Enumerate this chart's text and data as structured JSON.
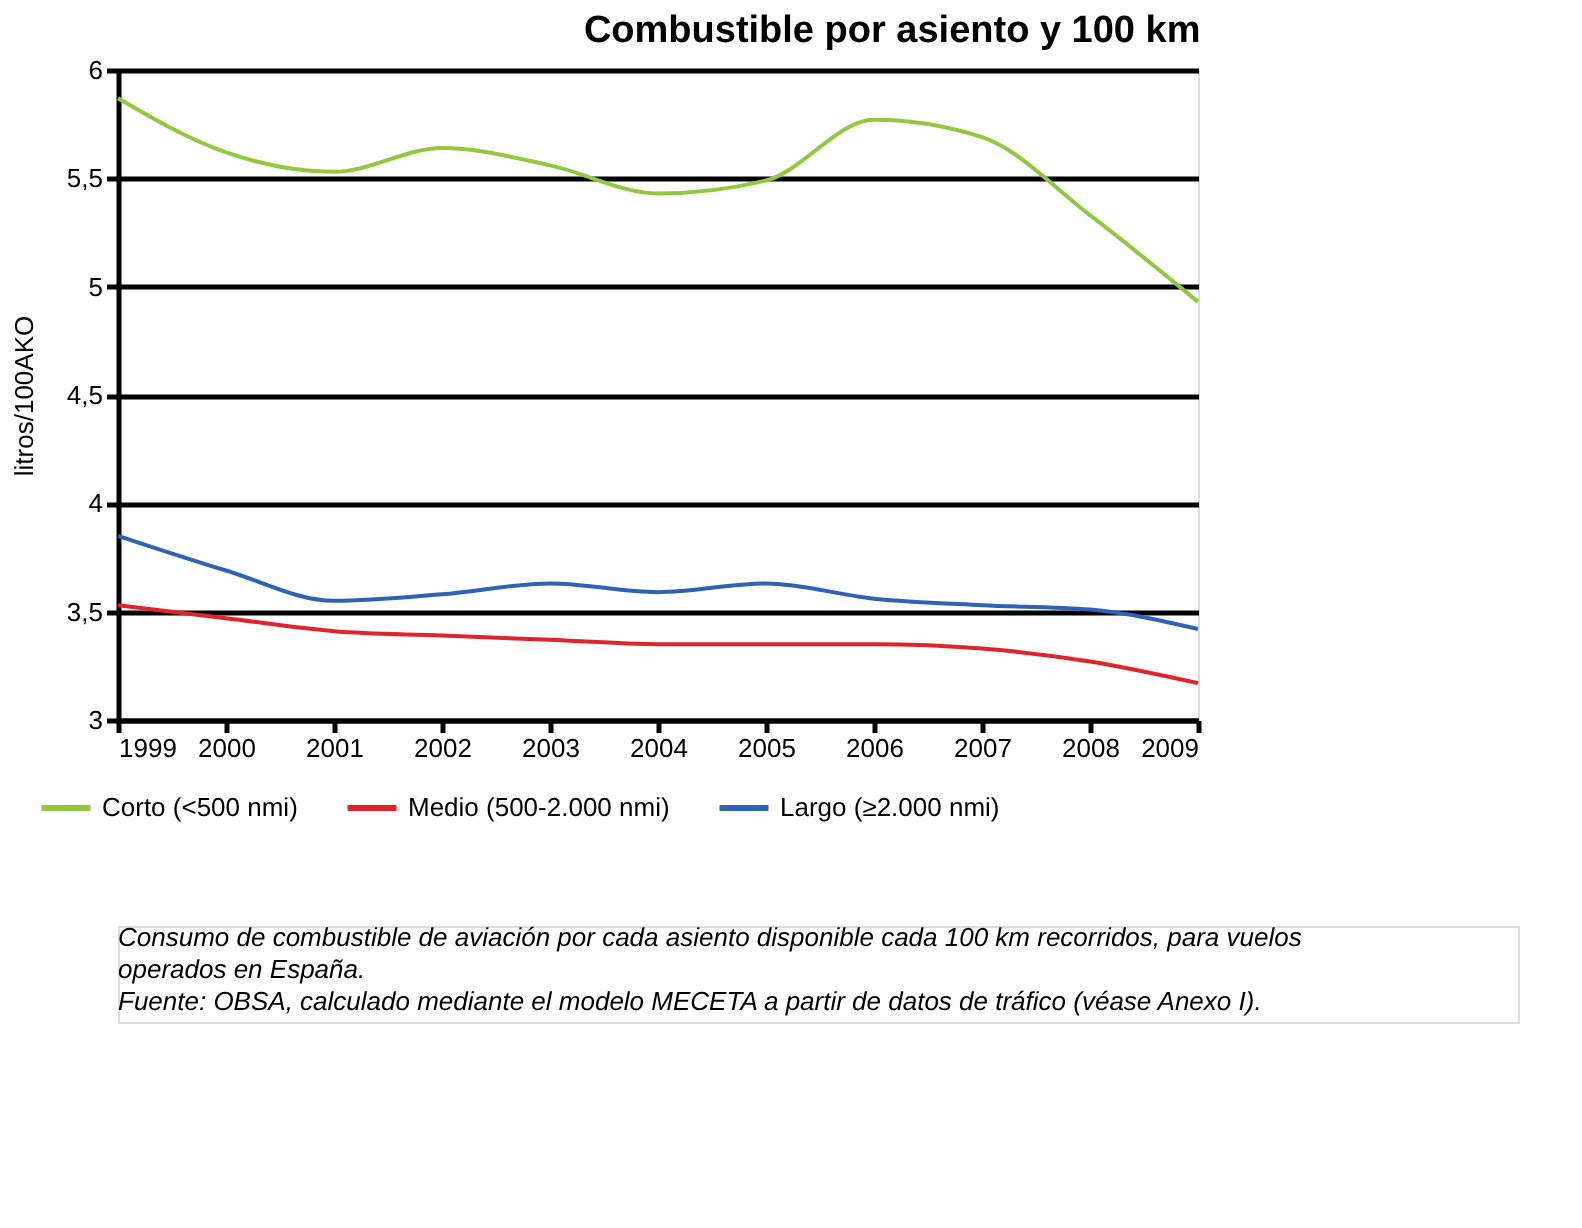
{
  "chart_data": {
    "type": "line",
    "title": "Combustible por asiento y 100 km",
    "ylabel": "litros/100AKO",
    "x": [
      1999,
      2000,
      2001,
      2002,
      2003,
      2004,
      2005,
      2006,
      2007,
      2008,
      2009
    ],
    "series": [
      {
        "name": "Corto (<500 nmi)",
        "color": "#92c83e",
        "values": [
          5.87,
          5.62,
          5.53,
          5.64,
          5.56,
          5.43,
          5.49,
          5.77,
          5.69,
          5.33,
          4.93
        ]
      },
      {
        "name": "Medio (500-2.000 nmi)",
        "color": "#e0242b",
        "values": [
          3.53,
          3.47,
          3.41,
          3.39,
          3.37,
          3.35,
          3.35,
          3.35,
          3.33,
          3.27,
          3.17
        ]
      },
      {
        "name": "Largo (≥2.000 nmi)",
        "color": "#2e62b5",
        "values": [
          3.85,
          3.69,
          3.55,
          3.58,
          3.63,
          3.59,
          3.63,
          3.56,
          3.53,
          3.51,
          3.42
        ]
      }
    ],
    "xlim": [
      1999,
      2009
    ],
    "xticks": [
      1999,
      2000,
      2001,
      2002,
      2003,
      2004,
      2005,
      2006,
      2007,
      2008,
      2009
    ],
    "ylim": [
      3,
      6
    ],
    "yticks": [
      {
        "value": 3,
        "label": "3"
      },
      {
        "value": 3.5,
        "label": "3,5"
      },
      {
        "value": 4,
        "label": "4"
      },
      {
        "value": 4.5,
        "label": "4,5"
      },
      {
        "value": 5,
        "label": "5"
      },
      {
        "value": 5.5,
        "label": "5,5"
      },
      {
        "value": 6,
        "label": "6"
      }
    ],
    "grid": "y",
    "legend": "bottom",
    "marker": "none",
    "line_style": "solid",
    "annotations": [
      "Consumo de combustible de aviación por cada asiento disponible cada 100 km recorridos, para vuelos operados en España.",
      "Fuente: OBSA, calculado mediante el modelo MECETA a partir de datos de tráfico (véase Anexo I)."
    ]
  }
}
